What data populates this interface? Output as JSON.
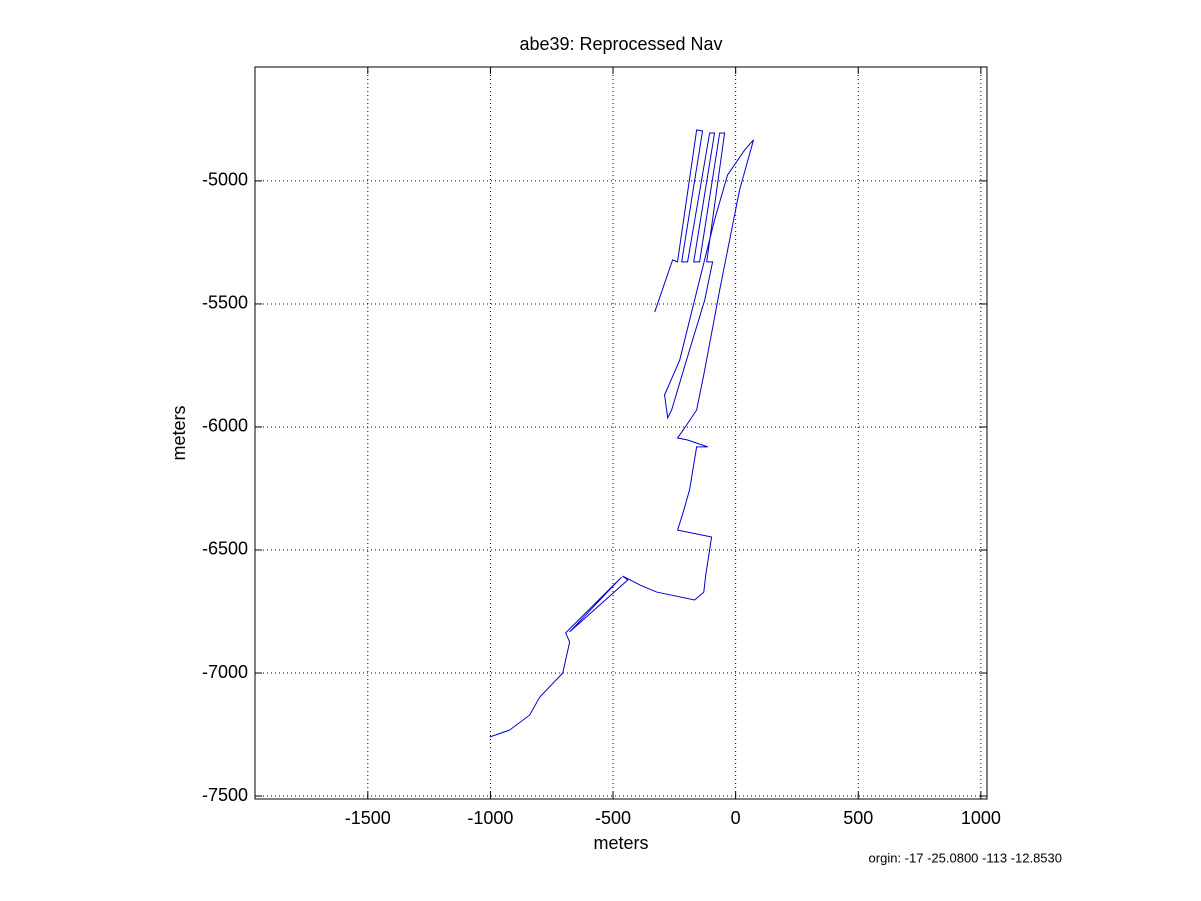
{
  "chart_data": {
    "type": "line",
    "title": "abe39: Reprocessed Nav",
    "xlabel": "meters",
    "ylabel": "meters",
    "annotation": "orgin: -17 -25.0800 -113 -12.8530",
    "xlim": [
      -1960,
      1025
    ],
    "ylim": [
      -7512,
      -4537
    ],
    "xticks": [
      -1500,
      -1000,
      -500,
      0,
      500,
      1000
    ],
    "yticks": [
      -7500,
      -7000,
      -6500,
      -6000,
      -5500,
      -5000
    ],
    "grid": true,
    "series": [
      {
        "color": "#0000cc",
        "x": [
          -1003,
          -922,
          -840,
          -799,
          -705,
          -677,
          -693,
          -465,
          -677,
          -440,
          -461,
          -391,
          -322,
          -167,
          -130,
          -122,
          -98,
          -237,
          -216,
          -188,
          -159,
          -114,
          -196,
          -237,
          -200,
          -159,
          -126,
          -65,
          16,
          73,
          37,
          -33,
          -86,
          -147,
          -228,
          -290,
          -277,
          -261,
          -188,
          -126,
          -94,
          -118,
          -45,
          -65,
          -147,
          -171,
          -86,
          -106,
          -196,
          -220,
          -135,
          -159,
          -237,
          -257,
          -330
        ],
        "values": [
          -7260,
          -7232,
          -7171,
          -7098,
          -7000,
          -6874,
          -6837,
          -6610,
          -6833,
          -6622,
          -6606,
          -6642,
          -6671,
          -6703,
          -6671,
          -6602,
          -6447,
          -6419,
          -6354,
          -6256,
          -6081,
          -6081,
          -6053,
          -6045,
          -5992,
          -5931,
          -5768,
          -5443,
          -5037,
          -4833,
          -4874,
          -4976,
          -5159,
          -5402,
          -5728,
          -5870,
          -5963,
          -5931,
          -5687,
          -5484,
          -5329,
          -5329,
          -4805,
          -4805,
          -5329,
          -5329,
          -4805,
          -4805,
          -5329,
          -5329,
          -4797,
          -4793,
          -5329,
          -5321,
          -5533
        ]
      }
    ]
  }
}
